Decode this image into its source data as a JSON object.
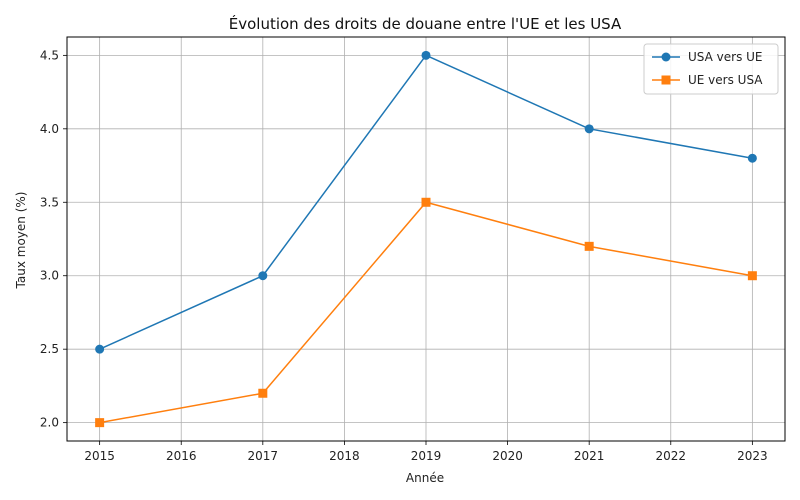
{
  "chart_data": {
    "type": "line",
    "title": "Évolution des droits de douane entre l'UE et les USA",
    "xlabel": "Année",
    "ylabel": "Taux moyen (%)",
    "xlim": [
      2014.6,
      2023.4
    ],
    "ylim": [
      1.875,
      4.625
    ],
    "x_ticks": [
      2015,
      2016,
      2017,
      2018,
      2019,
      2020,
      2021,
      2022,
      2023
    ],
    "y_ticks": [
      2.0,
      2.5,
      3.0,
      3.5,
      4.0,
      4.5
    ],
    "y_tick_labels": [
      "2.0",
      "2.5",
      "3.0",
      "3.5",
      "4.0",
      "4.5"
    ],
    "grid": true,
    "legend_position": "top-right",
    "series": [
      {
        "name": "USA vers UE",
        "color": "#1f77b4",
        "marker": "circle",
        "x": [
          2015,
          2017,
          2019,
          2021,
          2023
        ],
        "y": [
          2.5,
          3.0,
          4.5,
          4.0,
          3.8
        ]
      },
      {
        "name": "UE vers USA",
        "color": "#ff7f0e",
        "marker": "square",
        "x": [
          2015,
          2017,
          2019,
          2021,
          2023
        ],
        "y": [
          2.0,
          2.2,
          3.5,
          3.2,
          3.0
        ]
      }
    ]
  }
}
